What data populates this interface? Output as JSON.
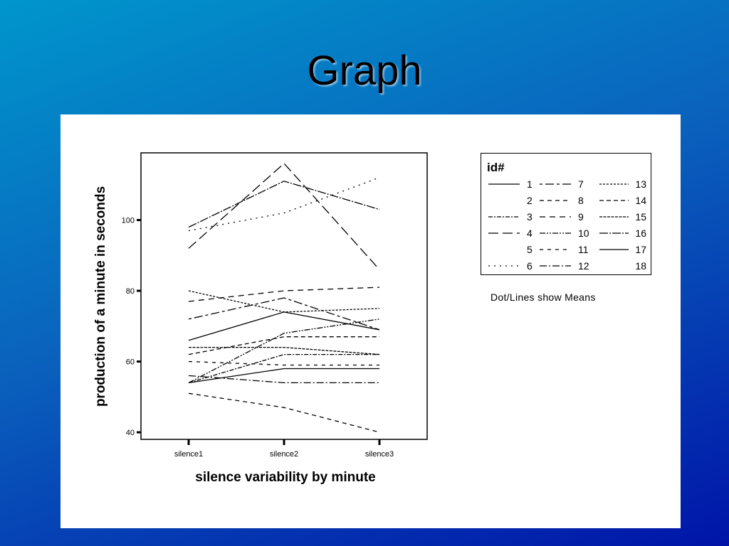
{
  "slide": {
    "title": "Graph"
  },
  "chart_data": {
    "type": "line",
    "title": "",
    "xlabel": "silence variability by minute",
    "ylabel": "production of a minute in seconds",
    "categories": [
      "silence1",
      "silence2",
      "silence3"
    ],
    "yticks": [
      40,
      60,
      80,
      100
    ],
    "ylim": [
      38,
      119
    ],
    "grid": false,
    "legend": {
      "title": "id#",
      "position": "right"
    },
    "note": "Dot/Lines show Means",
    "series": [
      {
        "name": "1",
        "dash": "solid",
        "values": [
          66,
          74,
          69
        ]
      },
      {
        "name": "2",
        "dash": "none",
        "values": [
          null,
          null,
          null
        ]
      },
      {
        "name": "3",
        "dash": "dashdot2",
        "values": [
          54,
          62,
          62
        ]
      },
      {
        "name": "4",
        "dash": "longdash",
        "values": [
          92,
          116,
          86
        ]
      },
      {
        "name": "5",
        "dash": "none",
        "values": [
          null,
          null,
          null
        ]
      },
      {
        "name": "6",
        "dash": "dot",
        "values": [
          97,
          102,
          112
        ]
      },
      {
        "name": "7",
        "dash": "mixed",
        "values": [
          72,
          78,
          69
        ]
      },
      {
        "name": "8",
        "dash": "shortdash",
        "values": [
          51,
          47,
          40
        ]
      },
      {
        "name": "9",
        "dash": "dash",
        "values": [
          77,
          80,
          81
        ]
      },
      {
        "name": "10",
        "dash": "dashdotdot",
        "values": [
          54,
          68,
          72
        ]
      },
      {
        "name": "11",
        "dash": "dash2",
        "values": [
          60,
          59,
          59
        ]
      },
      {
        "name": "12",
        "dash": "dashdot",
        "values": [
          56,
          54,
          54
        ]
      },
      {
        "name": "13",
        "dash": "finedash",
        "values": [
          80,
          74,
          75
        ]
      },
      {
        "name": "14",
        "dash": "dash3",
        "values": [
          62,
          67,
          67
        ]
      },
      {
        "name": "15",
        "dash": "finedash2",
        "values": [
          64,
          64,
          62
        ]
      },
      {
        "name": "16",
        "dash": "longdashdot",
        "values": [
          98,
          111,
          103
        ]
      },
      {
        "name": "17",
        "dash": "solid",
        "values": [
          54,
          58,
          58
        ]
      },
      {
        "name": "18",
        "dash": "none",
        "values": [
          null,
          null,
          null
        ]
      }
    ]
  }
}
